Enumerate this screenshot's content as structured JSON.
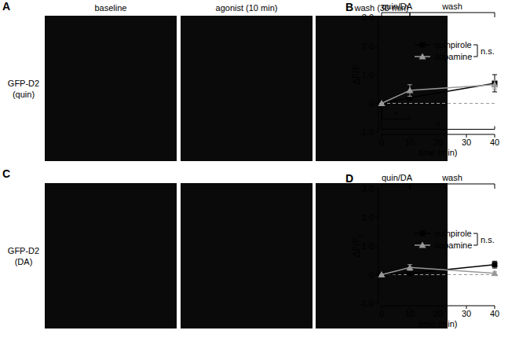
{
  "image_titles": [
    "baseline",
    "agonist (10 min)",
    "wash (30 min)"
  ],
  "panels": [
    {
      "label": "A",
      "row_label": [
        "GFP-D2",
        "(quin)"
      ]
    },
    {
      "label": "C",
      "row_label": [
        "GFP-D2",
        "(DA)"
      ]
    }
  ],
  "chart_data": [
    {
      "type": "line",
      "panel": "B",
      "xlabel": "time (min)",
      "ylabel": "ΔF/F",
      "x": [
        0,
        10,
        40
      ],
      "xlim": [
        0,
        40
      ],
      "xticks": [
        0,
        10,
        20,
        30,
        40
      ],
      "ylim": [
        -1,
        3
      ],
      "yticks": [
        {
          "value": -1,
          "label": "-1.0"
        },
        0,
        {
          "value": 1,
          "label": "1.0"
        },
        {
          "value": 2,
          "label": "2.0"
        },
        {
          "value": 3,
          "label": "3.0"
        }
      ],
      "legend": "upper right",
      "legend_note": "n.s.",
      "series": [
        {
          "name": "quinpirole",
          "color": "#000000",
          "marker": "square",
          "values": [
            0,
            0.2,
            0.7
          ],
          "errors": [
            0,
            0.1,
            0.3
          ]
        },
        {
          "name": "dopamine",
          "color": "#999999",
          "marker": "triangle",
          "values": [
            0,
            0.45,
            0.65
          ],
          "errors": [
            0,
            0.2,
            0.15
          ]
        }
      ],
      "periods": [
        {
          "label": "quin/DA",
          "x": [
            0,
            10
          ]
        },
        {
          "label": "wash",
          "x": [
            10,
            40
          ]
        }
      ],
      "significance": [
        {
          "label": "*",
          "x": [
            0,
            10
          ]
        },
        {
          "label": "*",
          "x": [
            0,
            40
          ]
        }
      ]
    },
    {
      "type": "line",
      "panel": "D",
      "xlabel": "time (min)",
      "ylabel": "ΔF/F",
      "ylabel_subscript": "r",
      "x": [
        0,
        10,
        40
      ],
      "xlim": [
        0,
        40
      ],
      "xticks": [
        0,
        10,
        20,
        30,
        40
      ],
      "ylim": [
        -1,
        3
      ],
      "yticks": [
        {
          "value": -1,
          "label": "-1.0"
        },
        0,
        {
          "value": 1,
          "label": "1.0"
        },
        {
          "value": 2,
          "label": "2.0"
        },
        {
          "value": 3,
          "label": "3.0"
        }
      ],
      "legend": "upper right",
      "legend_note": "n.s.",
      "series": [
        {
          "name": "quinpirole",
          "color": "#000000",
          "marker": "square",
          "values": [
            0,
            0.05,
            0.35
          ],
          "errors": [
            0,
            0.03,
            0.12
          ]
        },
        {
          "name": "dopamine",
          "color": "#999999",
          "marker": "triangle",
          "values": [
            0,
            0.25,
            0.05
          ],
          "errors": [
            0,
            0.1,
            0.05
          ]
        }
      ],
      "periods": [
        {
          "label": "quin/DA",
          "x": [
            0,
            10
          ]
        },
        {
          "label": "wash",
          "x": [
            10,
            40
          ]
        }
      ],
      "significance": []
    }
  ]
}
